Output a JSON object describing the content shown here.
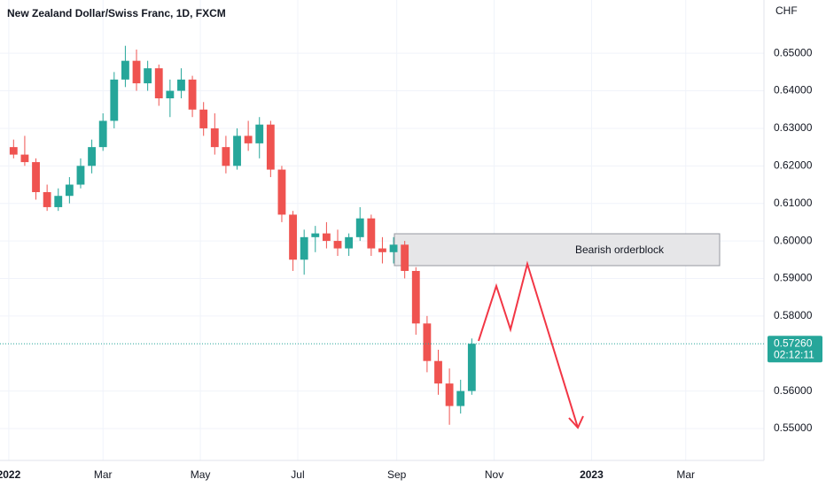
{
  "chart_data": {
    "type": "candlestick",
    "title": "New Zealand Dollar/Swiss Franc, 1D, FXCM",
    "y_unit": "CHF",
    "annotation": "Bearish orderblock",
    "last_price": {
      "value": 0.5726,
      "label": "0.57260"
    },
    "countdown": "02:12:11",
    "up_color": "#26a69a",
    "down_color": "#ef5350",
    "grid": true,
    "xlim": [
      -5.5,
      473
    ],
    "xticks": [
      {
        "value": 0,
        "label": "2022"
      },
      {
        "value": 59,
        "label": "Mar"
      },
      {
        "value": 120,
        "label": "May"
      },
      {
        "value": 181,
        "label": "Jul"
      },
      {
        "value": 243,
        "label": "Sep"
      },
      {
        "value": 304,
        "label": "Nov"
      },
      {
        "value": 365,
        "label": "2023"
      },
      {
        "value": 424,
        "label": "Mar"
      }
    ],
    "ylim": [
      0.5415,
      0.6642
    ],
    "yticks": [
      {
        "value": 0.55,
        "label": "0.55000"
      },
      {
        "value": 0.56,
        "label": "0.56000"
      },
      {
        "value": 0.58,
        "label": "0.58000"
      },
      {
        "value": 0.59,
        "label": "0.59000"
      },
      {
        "value": 0.6,
        "label": "0.60000"
      },
      {
        "value": 0.61,
        "label": "0.61000"
      },
      {
        "value": 0.62,
        "label": "0.62000"
      },
      {
        "value": 0.63,
        "label": "0.63000"
      },
      {
        "value": 0.64,
        "label": "0.64000"
      },
      {
        "value": 0.65,
        "label": "0.65000"
      }
    ],
    "x": [
      3,
      10,
      17,
      24,
      31,
      38,
      45,
      52,
      59,
      66,
      73,
      80,
      87,
      94,
      101,
      108,
      115,
      122,
      129,
      136,
      143,
      150,
      157,
      164,
      171,
      178,
      185,
      192,
      199,
      206,
      213,
      220,
      227,
      234,
      241,
      248,
      255,
      262,
      269,
      276,
      283,
      290
    ],
    "open": [
      0.625,
      0.623,
      0.621,
      0.613,
      0.609,
      0.612,
      0.615,
      0.62,
      0.625,
      0.632,
      0.643,
      0.648,
      0.642,
      0.646,
      0.638,
      0.64,
      0.643,
      0.635,
      0.63,
      0.625,
      0.62,
      0.628,
      0.626,
      0.631,
      0.619,
      0.607,
      0.595,
      0.601,
      0.602,
      0.6,
      0.598,
      0.601,
      0.606,
      0.598,
      0.597,
      0.599,
      0.592,
      0.578,
      0.568,
      0.562,
      0.556,
      0.56
    ],
    "high": [
      0.627,
      0.628,
      0.622,
      0.615,
      0.614,
      0.617,
      0.622,
      0.627,
      0.634,
      0.645,
      0.652,
      0.651,
      0.648,
      0.647,
      0.643,
      0.646,
      0.644,
      0.637,
      0.634,
      0.628,
      0.63,
      0.632,
      0.633,
      0.632,
      0.62,
      0.608,
      0.603,
      0.604,
      0.605,
      0.603,
      0.602,
      0.609,
      0.607,
      0.601,
      0.601,
      0.6,
      0.593,
      0.58,
      0.571,
      0.566,
      0.563,
      0.574
    ],
    "low": [
      0.622,
      0.62,
      0.611,
      0.608,
      0.608,
      0.61,
      0.614,
      0.618,
      0.624,
      0.63,
      0.641,
      0.64,
      0.64,
      0.636,
      0.633,
      0.638,
      0.633,
      0.628,
      0.623,
      0.618,
      0.619,
      0.624,
      0.622,
      0.617,
      0.605,
      0.592,
      0.591,
      0.597,
      0.598,
      0.596,
      0.596,
      0.6,
      0.596,
      0.594,
      0.594,
      0.59,
      0.575,
      0.565,
      0.559,
      0.551,
      0.554,
      0.559
    ],
    "close": [
      0.623,
      0.621,
      0.613,
      0.609,
      0.612,
      0.615,
      0.62,
      0.625,
      0.632,
      0.643,
      0.648,
      0.642,
      0.646,
      0.638,
      0.64,
      0.643,
      0.635,
      0.63,
      0.625,
      0.62,
      0.628,
      0.626,
      0.631,
      0.619,
      0.607,
      0.595,
      0.601,
      0.602,
      0.6,
      0.598,
      0.601,
      0.606,
      0.598,
      0.597,
      0.599,
      0.592,
      0.578,
      0.568,
      0.562,
      0.556,
      0.56,
      0.5726
    ]
  }
}
